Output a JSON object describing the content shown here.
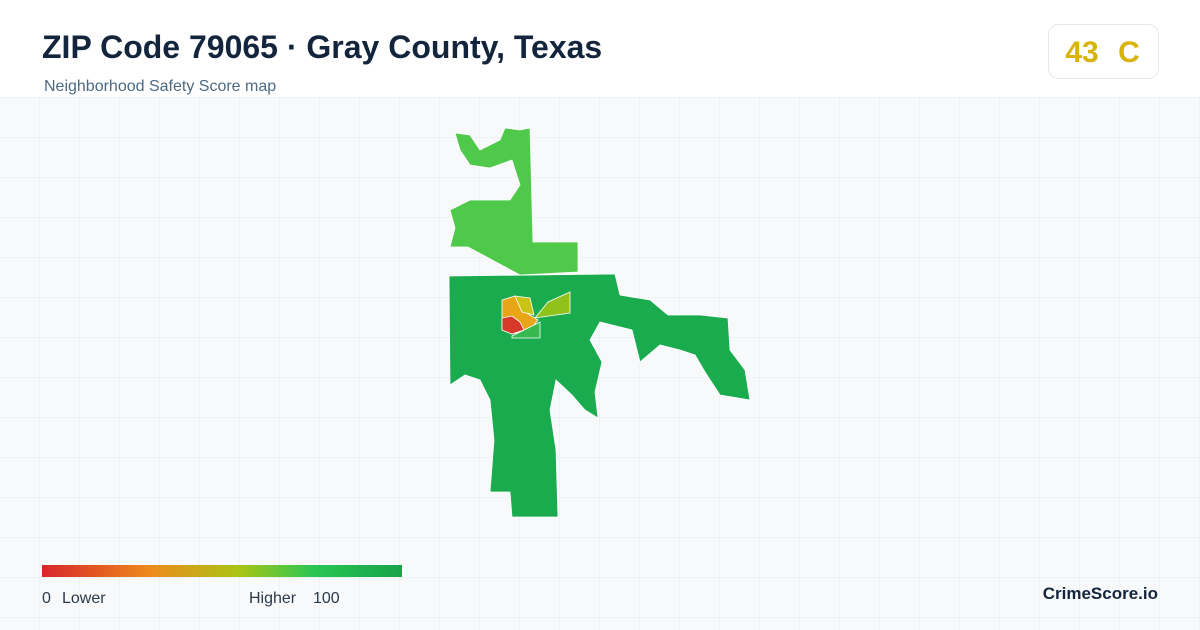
{
  "header": {
    "title": "ZIP Code 79065 · Gray County, Texas",
    "subtitle": "Neighborhood Safety Score map"
  },
  "score": {
    "value": "43",
    "grade": "C"
  },
  "legend": {
    "min": "0",
    "min_label": "Lower",
    "max_label": "Higher",
    "max": "100"
  },
  "brand": "CrimeScore.io"
}
